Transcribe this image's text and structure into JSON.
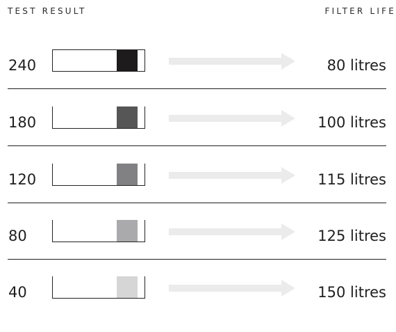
{
  "header": {
    "left_label": "TEST RESULT",
    "right_label": "FILTER LIFE"
  },
  "rows": [
    {
      "score": "240",
      "life": "80 litres",
      "pad_color": "#1e1b1c"
    },
    {
      "score": "180",
      "life": "100 litres",
      "pad_color": "#575657"
    },
    {
      "score": "120",
      "life": "115 litres",
      "pad_color": "#818083"
    },
    {
      "score": "80",
      "life": "125 litres",
      "pad_color": "#aaaaad"
    },
    {
      "score": "40",
      "life": "150 litres",
      "pad_color": "#d6d6d6"
    }
  ],
  "colors": {
    "arrow": "#ebebeb",
    "separator": "#1f1f1f"
  }
}
